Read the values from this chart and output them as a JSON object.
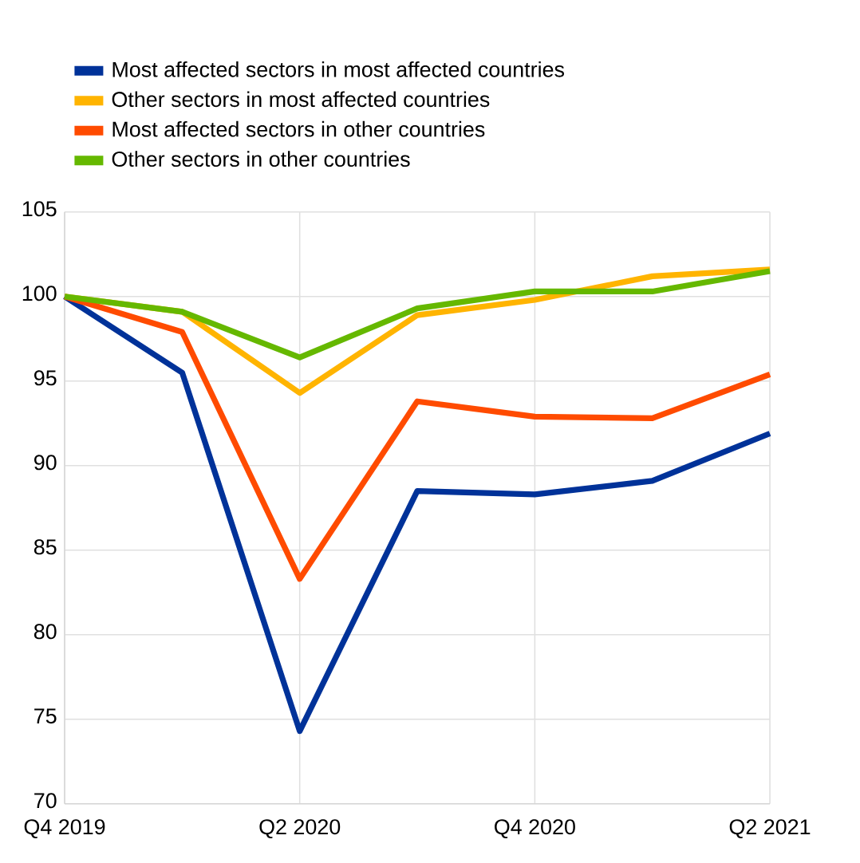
{
  "chart_data": {
    "type": "line",
    "categories": [
      "Q4 2019",
      null,
      "Q2 2020",
      null,
      "Q4 2020",
      null,
      "Q2 2021"
    ],
    "series": [
      {
        "name": "Most affected sectors in most affected countries",
        "color": "#003299",
        "values": [
          100,
          95.5,
          74.3,
          88.5,
          88.3,
          89.1,
          91.9
        ]
      },
      {
        "name": "Other sectors in most affected countries",
        "color": "#ffb400",
        "values": [
          100,
          99.1,
          94.3,
          98.9,
          99.8,
          101.2,
          101.6
        ]
      },
      {
        "name": "Most affected sectors in other countries",
        "color": "#ff4b00",
        "values": [
          100,
          97.9,
          83.3,
          93.8,
          92.9,
          92.8,
          95.4
        ]
      },
      {
        "name": "Other sectors in other countries",
        "color": "#65b800",
        "values": [
          100,
          99.1,
          96.4,
          99.3,
          100.3,
          100.3,
          101.5
        ]
      }
    ],
    "ylim": [
      70,
      105
    ],
    "yticks": [
      70,
      75,
      80,
      85,
      90,
      95,
      100,
      105
    ],
    "grid": true,
    "legend": "top",
    "marker": "none",
    "line_style": "solid"
  }
}
